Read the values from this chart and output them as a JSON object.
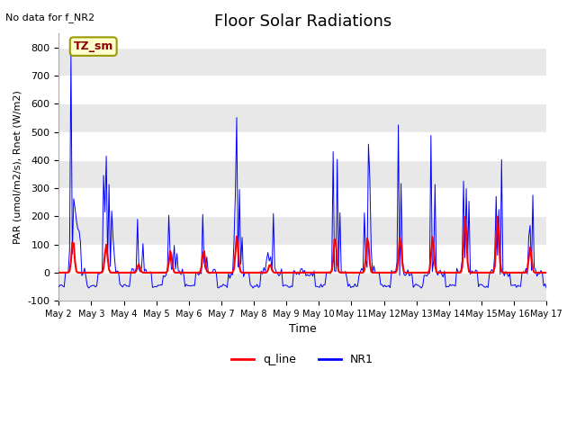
{
  "title": "Floor Solar Radiations",
  "xlabel": "Time",
  "ylabel": "PAR (umol/m2/s), Rnet (W/m2)",
  "no_data_text": "No data for f_NR2",
  "legend_labels": [
    "q_line",
    "NR1"
  ],
  "legend_colors": [
    "red",
    "blue"
  ],
  "tz_label": "TZ_sm",
  "ylim": [
    -100,
    850
  ],
  "bg_color": "#f0f0f0",
  "start_day": 2,
  "end_day": 17,
  "month": "May",
  "grid_color": "#d8d8d8",
  "title_fontsize": 13,
  "tick_fontsize": 7,
  "ylabel_fontsize": 8
}
